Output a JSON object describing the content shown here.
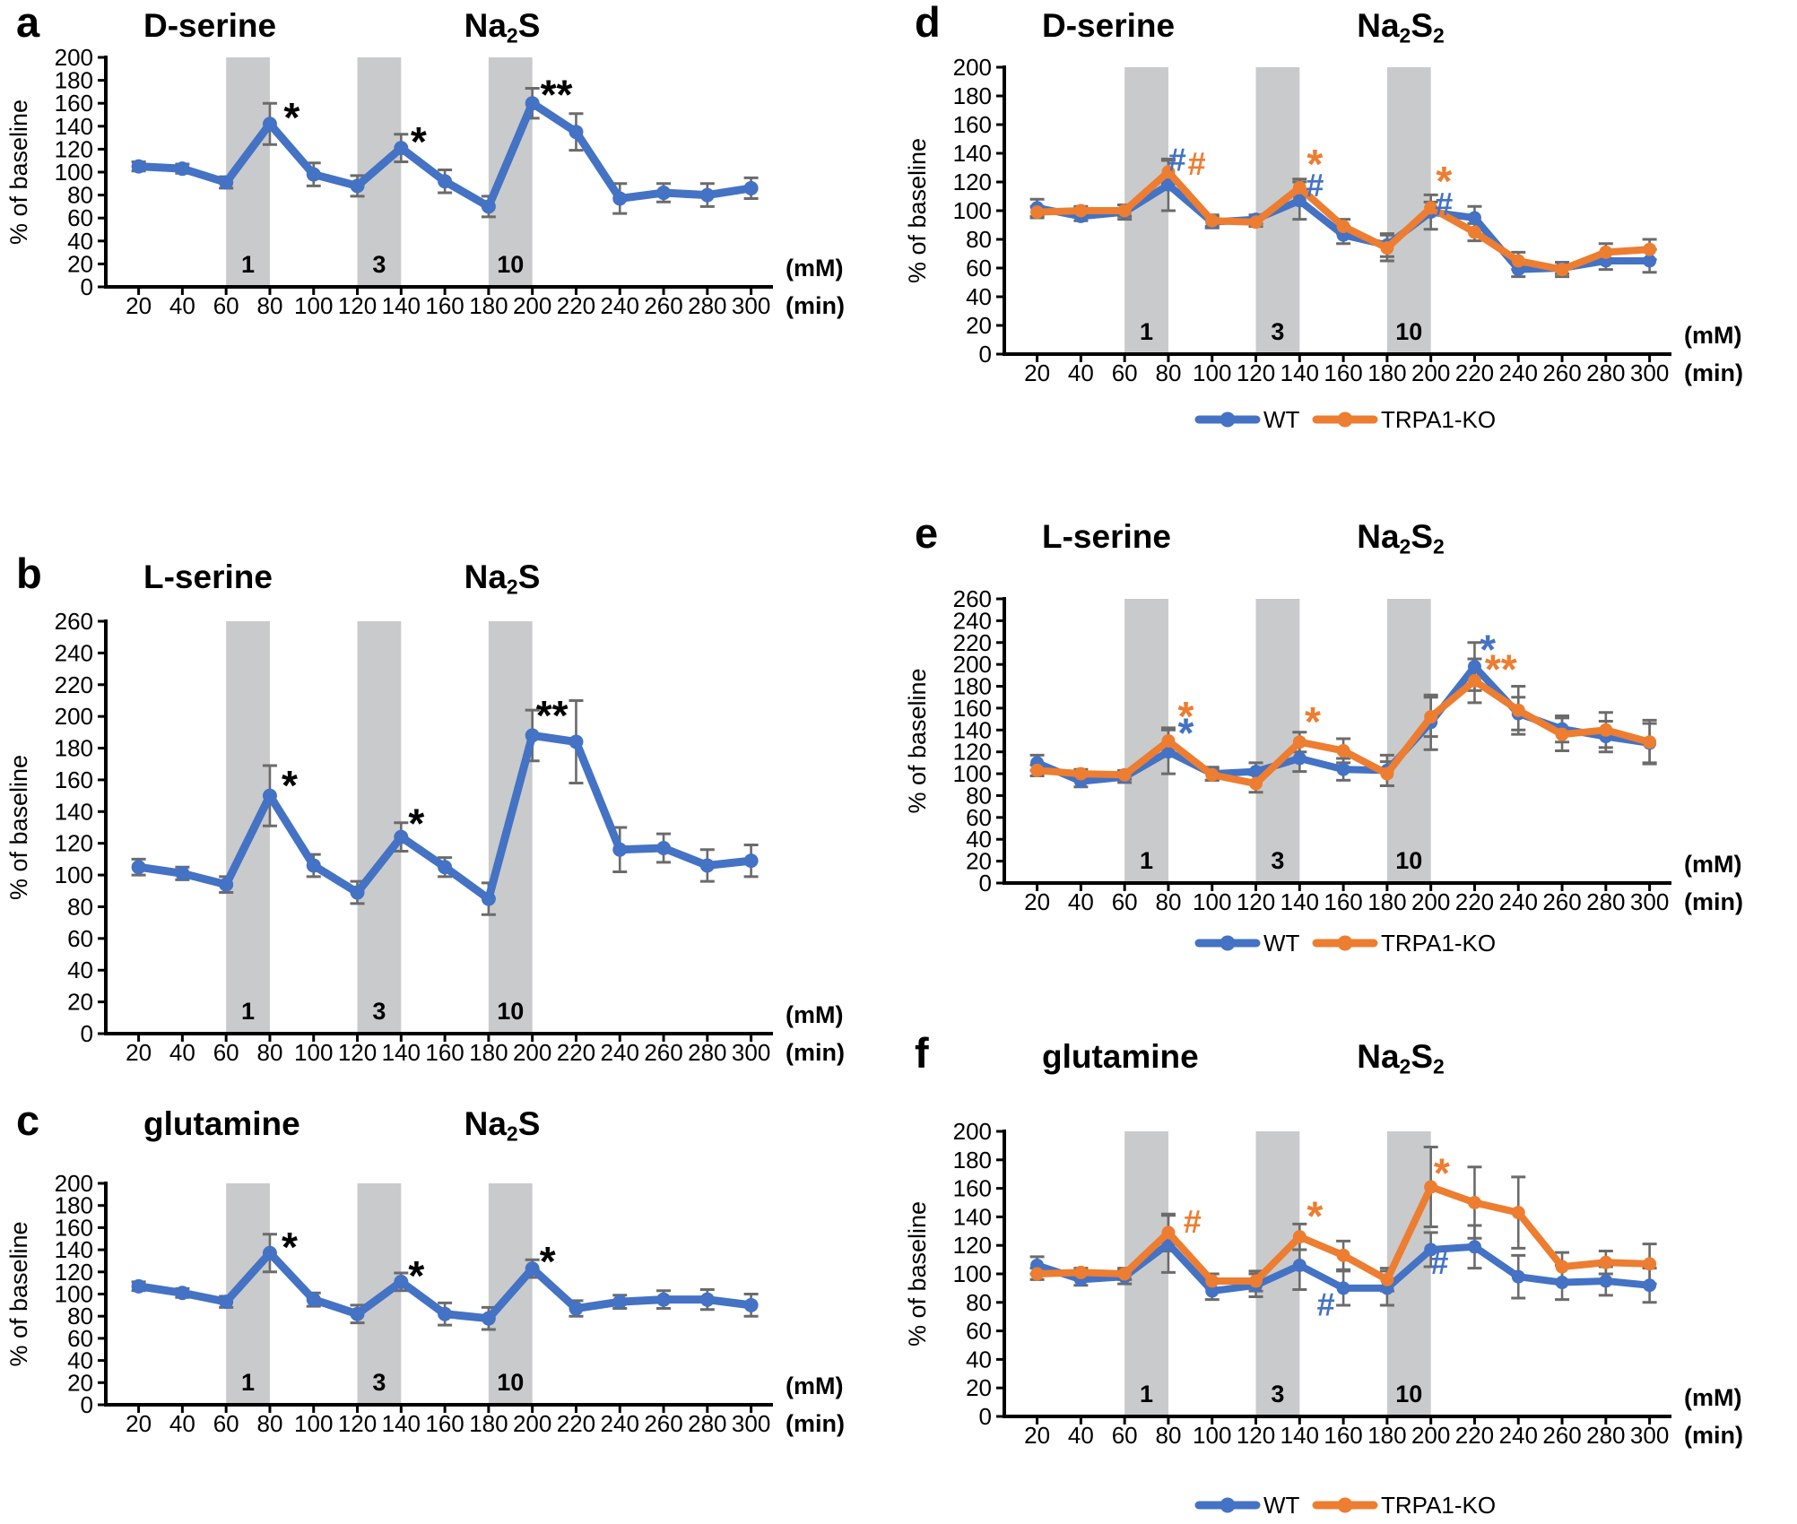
{
  "chart_shared": {
    "y_label": "% of baseline",
    "x_unit": "(min)",
    "conc_unit": "(mM)",
    "x_ticks": [
      20,
      40,
      60,
      80,
      100,
      120,
      140,
      160,
      180,
      200,
      220,
      240,
      260,
      280,
      300
    ],
    "bands": [
      {
        "range": [
          60,
          80
        ],
        "label": "1"
      },
      {
        "range": [
          120,
          140
        ],
        "label": "3"
      },
      {
        "range": [
          180,
          200
        ],
        "label": "10"
      }
    ],
    "band_color": "#C9CACB",
    "error_color": "#6B6B6B",
    "legend": [
      {
        "label": "WT",
        "color": "#4472C4"
      },
      {
        "label": "TRPA1-KO",
        "color": "#ED7D31"
      }
    ]
  },
  "chart_data": [
    {
      "id": "a",
      "type": "line",
      "letter": "a",
      "analyte": "D-serine",
      "compound": [
        "Na",
        "_2",
        "S"
      ],
      "ylim": [
        0,
        200
      ],
      "ytick_step": 20,
      "show_legend": false,
      "x": [
        20,
        40,
        60,
        80,
        100,
        120,
        140,
        160,
        180,
        200,
        220,
        240,
        260,
        280,
        300
      ],
      "series": [
        {
          "name": "WT",
          "color": "#4472C4",
          "values": [
            105,
            103,
            91,
            142,
            98,
            88,
            121,
            92,
            70,
            160,
            135,
            77,
            82,
            80,
            86
          ],
          "errors": [
            4,
            4,
            5,
            18,
            10,
            9,
            12,
            10,
            9,
            13,
            16,
            13,
            8,
            10,
            9
          ]
        }
      ],
      "annotations": [
        {
          "text": "*",
          "color": "#000000",
          "x": 90,
          "y": 148,
          "size": 46
        },
        {
          "text": "*",
          "color": "#000000",
          "x": 148,
          "y": 127,
          "size": 46
        },
        {
          "text": "**",
          "color": "#000000",
          "x": 211,
          "y": 168,
          "size": 46
        }
      ]
    },
    {
      "id": "b",
      "type": "line",
      "letter": "b",
      "analyte": "L-serine",
      "compound": [
        "Na",
        "_2",
        "S"
      ],
      "ylim": [
        0,
        260
      ],
      "ytick_step": 20,
      "show_legend": false,
      "x": [
        20,
        40,
        60,
        80,
        100,
        120,
        140,
        160,
        180,
        200,
        220,
        240,
        260,
        280,
        300
      ],
      "series": [
        {
          "name": "WT",
          "color": "#4472C4",
          "values": [
            105,
            101,
            94,
            150,
            106,
            89,
            124,
            105,
            85,
            188,
            184,
            116,
            117,
            106,
            109
          ],
          "errors": [
            5,
            4,
            5,
            19,
            7,
            7,
            9,
            6,
            10,
            16,
            26,
            14,
            9,
            10,
            10
          ]
        }
      ],
      "annotations": [
        {
          "text": "*",
          "color": "#000000",
          "x": 89,
          "y": 157,
          "size": 46
        },
        {
          "text": "*",
          "color": "#000000",
          "x": 147,
          "y": 133,
          "size": 46
        },
        {
          "text": "**",
          "color": "#000000",
          "x": 209,
          "y": 201,
          "size": 46
        }
      ]
    },
    {
      "id": "c",
      "type": "line",
      "letter": "c",
      "analyte": "glutamine",
      "compound": [
        "Na",
        "_2",
        "S"
      ],
      "ylim": [
        0,
        200
      ],
      "ytick_step": 20,
      "show_legend": false,
      "x": [
        20,
        40,
        60,
        80,
        100,
        120,
        140,
        160,
        180,
        200,
        220,
        240,
        260,
        280,
        300
      ],
      "series": [
        {
          "name": "WT",
          "color": "#4472C4",
          "values": [
            107,
            101,
            93,
            137,
            95,
            82,
            111,
            82,
            78,
            123,
            87,
            93,
            95,
            95,
            90
          ],
          "errors": [
            4,
            4,
            5,
            17,
            6,
            8,
            8,
            10,
            10,
            8,
            7,
            6,
            8,
            9,
            10
          ]
        }
      ],
      "annotations": [
        {
          "text": "*",
          "color": "#000000",
          "x": 89,
          "y": 143,
          "size": 46
        },
        {
          "text": "*",
          "color": "#000000",
          "x": 147,
          "y": 117,
          "size": 46
        },
        {
          "text": "*",
          "color": "#000000",
          "x": 207,
          "y": 130,
          "size": 46
        }
      ]
    },
    {
      "id": "d",
      "type": "line",
      "letter": "d",
      "analyte": "D-serine",
      "compound": [
        "Na",
        "_2",
        "S",
        "_2"
      ],
      "ylim": [
        0,
        200
      ],
      "ytick_step": 20,
      "show_legend": true,
      "x": [
        20,
        40,
        60,
        80,
        100,
        120,
        140,
        160,
        180,
        200,
        220,
        240,
        260,
        280,
        300
      ],
      "series": [
        {
          "name": "WT",
          "color": "#4472C4",
          "values": [
            102,
            96,
            99,
            118,
            92,
            94,
            107,
            83,
            76,
            99,
            95,
            59,
            60,
            65,
            65
          ],
          "errors": [
            6,
            3,
            5,
            18,
            4,
            3,
            13,
            6,
            8,
            12,
            8,
            5,
            4,
            6,
            8
          ]
        },
        {
          "name": "TRPA1-KO",
          "color": "#ED7D31",
          "values": [
            99,
            100,
            100,
            127,
            93,
            92,
            116,
            89,
            74,
            102,
            85,
            65,
            59,
            71,
            73
          ],
          "errors": [
            4,
            3,
            4,
            8,
            4,
            3,
            6,
            5,
            9,
            4,
            6,
            6,
            5,
            6,
            7
          ]
        }
      ],
      "annotations": [
        {
          "text": "#",
          "color": "#4472C4",
          "x": 84,
          "y": 136,
          "size": 36
        },
        {
          "text": "#",
          "color": "#ED7D31",
          "x": 93,
          "y": 133,
          "size": 36
        },
        {
          "text": "*",
          "color": "#ED7D31",
          "x": 147,
          "y": 133,
          "size": 46
        },
        {
          "text": "#",
          "color": "#4472C4",
          "x": 147,
          "y": 118,
          "size": 36
        },
        {
          "text": "*",
          "color": "#ED7D31",
          "x": 206,
          "y": 121,
          "size": 46
        },
        {
          "text": "#",
          "color": "#4472C4",
          "x": 206,
          "y": 105,
          "size": 36
        }
      ]
    },
    {
      "id": "e",
      "type": "line",
      "letter": "e",
      "analyte": "L-serine",
      "compound": [
        "Na",
        "_2",
        "S",
        "_2"
      ],
      "ylim": [
        0,
        260
      ],
      "ytick_step": 20,
      "show_legend": true,
      "x": [
        20,
        40,
        60,
        80,
        100,
        120,
        140,
        160,
        180,
        200,
        220,
        240,
        260,
        280,
        300
      ],
      "series": [
        {
          "name": "WT",
          "color": "#4472C4",
          "values": [
            110,
            93,
            97,
            120,
            100,
            102,
            114,
            104,
            103,
            147,
            198,
            155,
            141,
            134,
            128
          ],
          "errors": [
            7,
            5,
            5,
            20,
            6,
            8,
            12,
            10,
            14,
            25,
            22,
            15,
            12,
            14,
            18
          ]
        },
        {
          "name": "TRPA1-KO",
          "color": "#ED7D31",
          "values": [
            103,
            100,
            99,
            130,
            99,
            91,
            129,
            121,
            100,
            152,
            185,
            158,
            136,
            140,
            129
          ],
          "errors": [
            5,
            4,
            4,
            12,
            5,
            8,
            9,
            11,
            11,
            18,
            20,
            22,
            15,
            16,
            20
          ]
        }
      ],
      "annotations": [
        {
          "text": "*",
          "color": "#ED7D31",
          "x": 88,
          "y": 153,
          "size": 46
        },
        {
          "text": "*",
          "color": "#4472C4",
          "x": 88,
          "y": 138,
          "size": 46
        },
        {
          "text": "*",
          "color": "#ED7D31",
          "x": 146,
          "y": 148,
          "size": 46
        },
        {
          "text": "*",
          "color": "#4472C4",
          "x": 226,
          "y": 214,
          "size": 46
        },
        {
          "text": "**",
          "color": "#ED7D31",
          "x": 232,
          "y": 196,
          "size": 46
        }
      ]
    },
    {
      "id": "f",
      "type": "line",
      "letter": "f",
      "analyte": "glutamine",
      "compound": [
        "Na",
        "_2",
        "S",
        "_2"
      ],
      "ylim": [
        0,
        200
      ],
      "ytick_step": 20,
      "show_legend": true,
      "x": [
        20,
        40,
        60,
        80,
        100,
        120,
        140,
        160,
        180,
        200,
        220,
        240,
        260,
        280,
        300
      ],
      "series": [
        {
          "name": "WT",
          "color": "#4472C4",
          "values": [
            106,
            96,
            98,
            121,
            88,
            92,
            106,
            90,
            90,
            117,
            119,
            98,
            94,
            95,
            92
          ],
          "errors": [
            6,
            4,
            5,
            20,
            6,
            8,
            17,
            12,
            12,
            12,
            15,
            15,
            12,
            10,
            12
          ]
        },
        {
          "name": "TRPA1-KO",
          "color": "#ED7D31",
          "values": [
            100,
            101,
            100,
            129,
            95,
            95,
            126,
            113,
            96,
            161,
            150,
            143,
            105,
            108,
            107
          ],
          "errors": [
            4,
            3,
            4,
            13,
            5,
            7,
            9,
            10,
            8,
            28,
            25,
            25,
            10,
            8,
            14
          ]
        }
      ],
      "annotations": [
        {
          "text": "#",
          "color": "#ED7D31",
          "x": 91,
          "y": 137,
          "size": 36
        },
        {
          "text": "*",
          "color": "#ED7D31",
          "x": 147,
          "y": 141,
          "size": 46
        },
        {
          "text": "#",
          "color": "#4472C4",
          "x": 152,
          "y": 79,
          "size": 36
        },
        {
          "text": "*",
          "color": "#ED7D31",
          "x": 205,
          "y": 171,
          "size": 46
        },
        {
          "text": "#",
          "color": "#4472C4",
          "x": 204,
          "y": 108,
          "size": 36
        }
      ]
    }
  ]
}
